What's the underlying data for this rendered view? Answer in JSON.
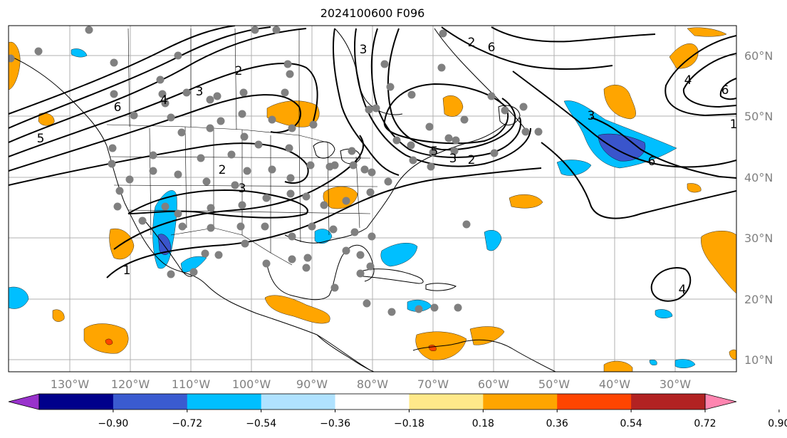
{
  "title": "2024100600 F096",
  "map": {
    "lon_labels": [
      "130°W",
      "120°W",
      "110°W",
      "100°W",
      "90°W",
      "80°W",
      "70°W",
      "60°W",
      "50°W",
      "40°W",
      "30°W"
    ],
    "lat_labels": [
      "60°N",
      "50°N",
      "40°N",
      "30°N",
      "20°N",
      "10°N"
    ],
    "contour_labels": [
      "5",
      "6",
      "4",
      "3",
      "2",
      "2",
      "3",
      "1",
      "3",
      "2",
      "6",
      "5",
      "3",
      "6",
      "4",
      "2",
      "6",
      "4",
      "3",
      "1"
    ],
    "colors": {
      "positive_fill": "#FFA500",
      "negative_fill": "#00BFFF",
      "strong_negative_fill": "#3A55CC",
      "station_dot": "#808080",
      "contour": "#000000",
      "gridline": "#B0B0B0"
    }
  },
  "colorbar": {
    "ticks": [
      "−0.90",
      "−0.72",
      "−0.54",
      "−0.36",
      "−0.18",
      "0.18",
      "0.36",
      "0.54",
      "0.72",
      "0.90"
    ],
    "colors": [
      "#9932CC",
      "#00008B",
      "#3A5BD0",
      "#00BFFF",
      "#B0E2FF",
      "#FFFFFF",
      "#FFE98A",
      "#FFA500",
      "#FF4500",
      "#B22222",
      "#FF85B0"
    ]
  }
}
